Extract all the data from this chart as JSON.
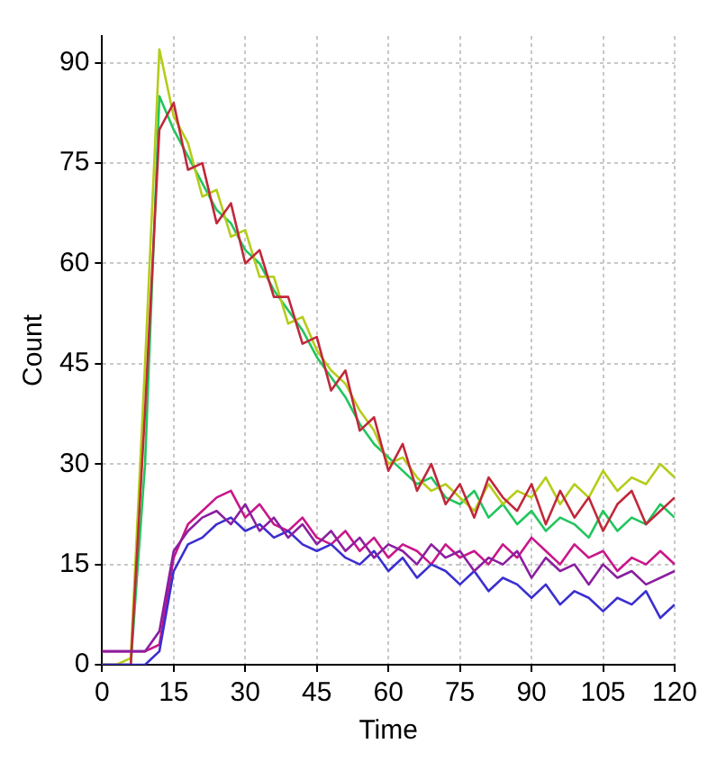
{
  "chart_data": {
    "type": "line",
    "xlabel": "Time",
    "ylabel": "Count",
    "x": [
      0,
      3,
      6,
      9,
      12,
      15,
      18,
      21,
      24,
      27,
      30,
      33,
      36,
      39,
      42,
      45,
      48,
      51,
      54,
      57,
      60,
      63,
      66,
      69,
      72,
      75,
      78,
      81,
      84,
      87,
      90,
      93,
      96,
      99,
      102,
      105,
      108,
      111,
      114,
      117,
      120
    ],
    "series": [
      {
        "color": "#8a1fa0",
        "values": [
          2,
          2,
          2,
          2,
          5,
          17,
          20,
          22,
          23,
          21,
          24,
          20,
          22,
          19,
          21,
          18,
          20,
          17,
          19,
          16,
          18,
          17,
          15,
          18,
          16,
          17,
          14,
          16,
          15,
          17,
          13,
          16,
          14,
          15,
          12,
          15,
          13,
          14,
          12,
          13,
          14
        ]
      },
      {
        "color": "#3a2fd0",
        "values": [
          0,
          0,
          0,
          0,
          2,
          14,
          18,
          19,
          21,
          22,
          20,
          21,
          19,
          20,
          18,
          17,
          18,
          16,
          15,
          17,
          14,
          16,
          13,
          15,
          14,
          12,
          14,
          11,
          13,
          12,
          10,
          12,
          9,
          11,
          10,
          8,
          10,
          9,
          11,
          7,
          9
        ]
      },
      {
        "color": "#c8178a",
        "values": [
          2,
          2,
          2,
          2,
          3,
          16,
          21,
          23,
          25,
          26,
          22,
          24,
          21,
          20,
          22,
          19,
          18,
          20,
          17,
          19,
          16,
          18,
          17,
          15,
          18,
          16,
          17,
          15,
          18,
          16,
          19,
          17,
          15,
          18,
          16,
          17,
          14,
          16,
          15,
          17,
          15
        ]
      },
      {
        "color": "#c0283a",
        "values": [
          0,
          0,
          0,
          38,
          80,
          84,
          74,
          75,
          66,
          69,
          60,
          62,
          55,
          55,
          48,
          49,
          41,
          44,
          35,
          37,
          29,
          33,
          26,
          30,
          24,
          27,
          22,
          28,
          25,
          23,
          27,
          21,
          26,
          22,
          25,
          20,
          24,
          26,
          21,
          23,
          25
        ]
      },
      {
        "color": "#b5cc1a",
        "values": [
          0,
          0,
          1,
          45,
          92,
          82,
          78,
          70,
          71,
          64,
          65,
          58,
          58,
          51,
          52,
          47,
          44,
          42,
          38,
          35,
          30,
          31,
          28,
          26,
          27,
          25,
          23,
          27,
          24,
          26,
          25,
          28,
          24,
          27,
          25,
          29,
          26,
          28,
          27,
          30,
          28
        ]
      },
      {
        "color": "#22c55e",
        "values": [
          0,
          0,
          0,
          30,
          85,
          80,
          76,
          72,
          68,
          66,
          62,
          60,
          56,
          53,
          50,
          46,
          43,
          40,
          36,
          33,
          31,
          29,
          27,
          28,
          25,
          24,
          26,
          22,
          24,
          21,
          23,
          20,
          22,
          21,
          19,
          23,
          20,
          22,
          21,
          24,
          22
        ]
      }
    ],
    "xlim": [
      0,
      120
    ],
    "xticks": [
      0,
      15,
      30,
      45,
      60,
      75,
      90,
      105,
      120
    ],
    "ylim": [
      0,
      94
    ],
    "yticks": [
      0,
      15,
      30,
      45,
      60,
      75,
      90
    ],
    "grid": true,
    "legend": false,
    "marker": "none",
    "line_style": "solid"
  }
}
